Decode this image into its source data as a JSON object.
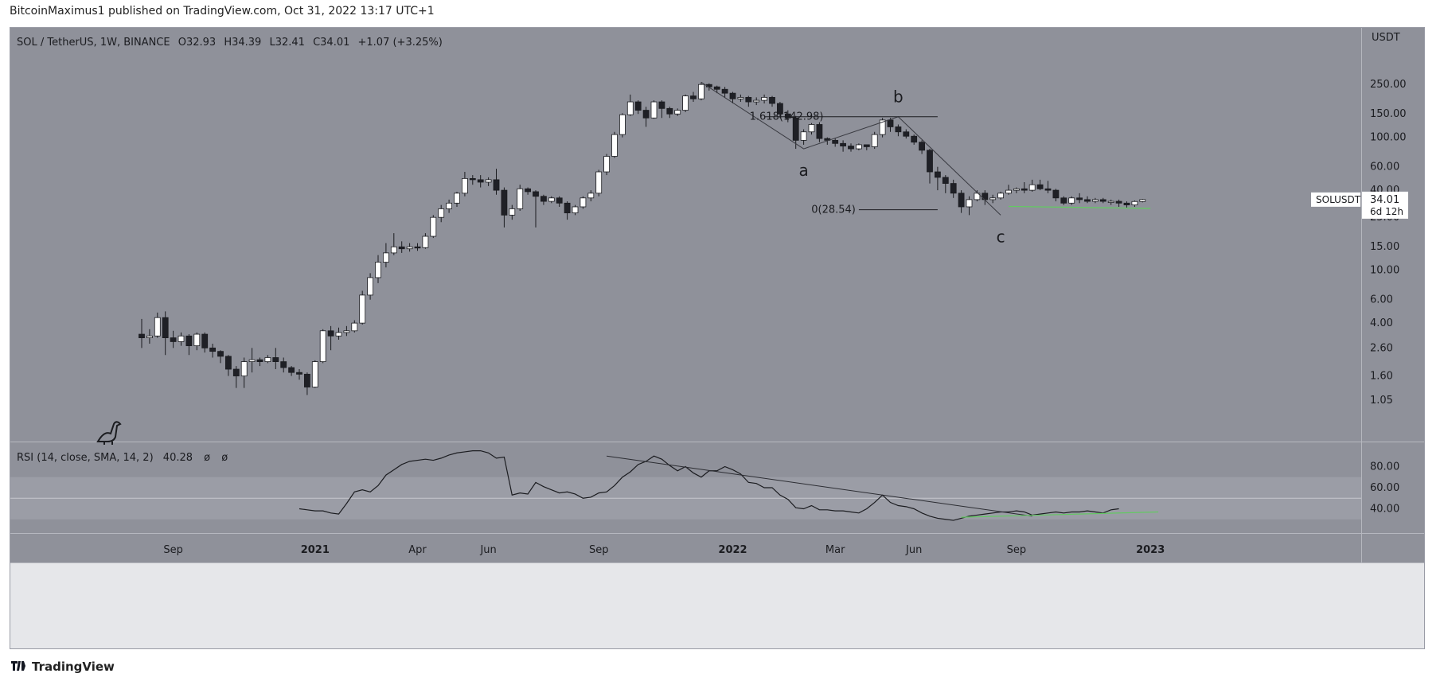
{
  "header": {
    "publisher": "BitcoinMaximus1 published on TradingView.com, Oct 31, 2022 13:17 UTC+1"
  },
  "footer": {
    "brand": "TradingView",
    "logo_icon": "tradingview-logo-icon"
  },
  "colors": {
    "pane_bg": "#8f919a",
    "rsi_band": "#9b9da6",
    "up": "#ffffff",
    "down": "#1f2026",
    "support_line": "#64c864"
  },
  "chart_data": [
    {
      "type": "candlestick",
      "legend": {
        "symbol": "SOL / TetherUS, 1W, BINANCE",
        "o_label": "O",
        "o_value": "32.93",
        "h_label": "H",
        "h_value": "34.39",
        "l_label": "L",
        "l_value": "32.41",
        "c_label": "C",
        "c_value": "34.01",
        "change": "+1.07 (+3.25%)"
      },
      "y_axis": {
        "title": "USDT",
        "scale": "log",
        "ticks": [
          "250.00",
          "150.00",
          "100.00",
          "60.00",
          "40.00",
          "25.00",
          "15.00",
          "10.00",
          "6.00",
          "4.00",
          "2.60",
          "1.60",
          "1.05"
        ]
      },
      "x_axis": {
        "ticks": [
          "Sep",
          "2021",
          "Apr",
          "Jun",
          "Sep",
          "2022",
          "Mar",
          "Jun",
          "Sep",
          "2023"
        ]
      },
      "price_label": {
        "symbol": "SOLUSDT",
        "price": "34.01",
        "countdown": "6d 12h"
      },
      "annotations": {
        "wave_a": "a",
        "wave_b": "b",
        "wave_c": "c",
        "fib_top": "1.618(142.98)",
        "fib_bottom": "0(28.54)"
      },
      "candles": [
        [
          3.3,
          3.1,
          4.3,
          2.6
        ],
        [
          3.1,
          3.2,
          3.6,
          2.8
        ],
        [
          3.2,
          4.4,
          4.8,
          3.1
        ],
        [
          4.4,
          3.1,
          4.9,
          2.3
        ],
        [
          3.1,
          2.9,
          3.5,
          2.6
        ],
        [
          2.9,
          3.2,
          3.4,
          2.7
        ],
        [
          3.2,
          2.7,
          3.3,
          2.3
        ],
        [
          2.7,
          3.3,
          3.4,
          2.5
        ],
        [
          3.3,
          2.6,
          3.4,
          2.4
        ],
        [
          2.6,
          2.45,
          2.8,
          2.2
        ],
        [
          2.45,
          2.25,
          2.5,
          2.0
        ],
        [
          2.25,
          1.8,
          2.3,
          1.6
        ],
        [
          1.8,
          1.6,
          1.9,
          1.3
        ],
        [
          1.6,
          2.05,
          2.2,
          1.3
        ],
        [
          2.05,
          2.12,
          2.6,
          1.7
        ],
        [
          2.12,
          2.05,
          2.2,
          1.9
        ],
        [
          2.05,
          2.2,
          2.3,
          2.0
        ],
        [
          2.2,
          2.05,
          2.6,
          1.8
        ],
        [
          2.05,
          1.85,
          2.2,
          1.7
        ],
        [
          1.85,
          1.7,
          1.9,
          1.6
        ],
        [
          1.7,
          1.65,
          1.8,
          1.5
        ],
        [
          1.65,
          1.32,
          1.7,
          1.15
        ],
        [
          1.32,
          2.05,
          2.1,
          1.3
        ],
        [
          2.05,
          3.5,
          3.6,
          2.0
        ],
        [
          3.5,
          3.2,
          3.8,
          2.5
        ],
        [
          3.2,
          3.4,
          3.7,
          3.0
        ],
        [
          3.4,
          3.5,
          3.8,
          3.2
        ],
        [
          3.5,
          4.0,
          4.2,
          3.4
        ],
        [
          4.0,
          6.5,
          7.0,
          3.9
        ],
        [
          6.5,
          8.8,
          9.5,
          6.0
        ],
        [
          8.8,
          11.5,
          13.0,
          8.0
        ],
        [
          11.5,
          13.5,
          16.0,
          10.5
        ],
        [
          13.5,
          15.0,
          19.0,
          13.0
        ],
        [
          15.0,
          14.5,
          16.5,
          13.5
        ],
        [
          14.5,
          15.0,
          16.0,
          13.8
        ],
        [
          15.0,
          14.8,
          16.0,
          14.0
        ],
        [
          14.8,
          18.0,
          19.0,
          14.5
        ],
        [
          18.0,
          25.0,
          26.0,
          17.5
        ],
        [
          25.0,
          29.0,
          31.0,
          23.0
        ],
        [
          29.0,
          32.0,
          34.0,
          27.0
        ],
        [
          32.0,
          38.0,
          39.0,
          30.0
        ],
        [
          38.0,
          49.0,
          55.0,
          36.0
        ],
        [
          49.0,
          48.0,
          52.0,
          44.0
        ],
        [
          48.0,
          46.0,
          52.0,
          42.0
        ],
        [
          46.0,
          48.0,
          50.0,
          43.0
        ],
        [
          48.0,
          40.0,
          58.0,
          37.0
        ],
        [
          40.0,
          26.0,
          42.0,
          21.0
        ],
        [
          26.0,
          29.0,
          31.0,
          24.0
        ],
        [
          29.0,
          41.0,
          44.0,
          28.0
        ],
        [
          41.0,
          39.0,
          42.0,
          37.0
        ],
        [
          39.0,
          36.0,
          40.0,
          21.0
        ],
        [
          36.0,
          33.0,
          37.0,
          31.0
        ],
        [
          33.0,
          35.0,
          36.0,
          32.0
        ],
        [
          35.0,
          32.0,
          36.0,
          30.0
        ],
        [
          32.0,
          27.0,
          33.0,
          24.0
        ],
        [
          27.0,
          30.0,
          31.0,
          26.0
        ],
        [
          30.0,
          35.0,
          36.0,
          29.0
        ],
        [
          35.0,
          38.0,
          40.0,
          33.0
        ],
        [
          38.0,
          55.0,
          57.0,
          36.0
        ],
        [
          55.0,
          72.0,
          75.0,
          52.0
        ],
        [
          72.0,
          105.0,
          110.0,
          70.0
        ],
        [
          105.0,
          148.0,
          152.0,
          100.0
        ],
        [
          148.0,
          185.0,
          210.0,
          145.0
        ],
        [
          185.0,
          160.0,
          190.0,
          150.0
        ],
        [
          160.0,
          140.0,
          170.0,
          120.0
        ],
        [
          140.0,
          185.0,
          190.0,
          138.0
        ],
        [
          185.0,
          165.0,
          190.0,
          140.0
        ],
        [
          165.0,
          150.0,
          170.0,
          140.0
        ],
        [
          150.0,
          160.0,
          165.0,
          145.0
        ],
        [
          160.0,
          205.0,
          210.0,
          155.0
        ],
        [
          205.0,
          195.0,
          220.0,
          185.0
        ],
        [
          195.0,
          250.0,
          260.0,
          190.0
        ],
        [
          250.0,
          240.0,
          255.0,
          225.0
        ],
        [
          240.0,
          230.0,
          245.0,
          215.0
        ],
        [
          230.0,
          215.0,
          240.0,
          200.0
        ],
        [
          215.0,
          195.0,
          220.0,
          180.0
        ],
        [
          195.0,
          200.0,
          210.0,
          185.0
        ],
        [
          200.0,
          185.0,
          205.0,
          170.0
        ],
        [
          185.0,
          190.0,
          200.0,
          175.0
        ],
        [
          190.0,
          200.0,
          210.0,
          180.0
        ],
        [
          200.0,
          180.0,
          205.0,
          170.0
        ],
        [
          180.0,
          150.0,
          185.0,
          140.0
        ],
        [
          150.0,
          140.0,
          160.0,
          130.0
        ],
        [
          140.0,
          95.0,
          145.0,
          82.0
        ],
        [
          95.0,
          110.0,
          115.0,
          88.0
        ],
        [
          110.0,
          125.0,
          128.0,
          105.0
        ],
        [
          125.0,
          98.0,
          130.0,
          92.0
        ],
        [
          98.0,
          95.0,
          100.0,
          88.0
        ],
        [
          95.0,
          90.0,
          98.0,
          85.0
        ],
        [
          90.0,
          86.0,
          95.0,
          78.0
        ],
        [
          86.0,
          82.0,
          90.0,
          78.0
        ],
        [
          82.0,
          88.0,
          90.0,
          80.0
        ],
        [
          88.0,
          85.0,
          88.0,
          80.0
        ],
        [
          85.0,
          105.0,
          110.0,
          82.0
        ],
        [
          105.0,
          135.0,
          140.0,
          100.0
        ],
        [
          135.0,
          120.0,
          140.0,
          110.0
        ],
        [
          120.0,
          110.0,
          125.0,
          102.0
        ],
        [
          110.0,
          102.0,
          115.0,
          98.0
        ],
        [
          102.0,
          92.0,
          105.0,
          88.0
        ],
        [
          92.0,
          80.0,
          95.0,
          75.0
        ],
        [
          80.0,
          55.0,
          82.0,
          45.0
        ],
        [
          55.0,
          50.0,
          60.0,
          40.0
        ],
        [
          50.0,
          45.0,
          52.0,
          38.0
        ],
        [
          45.0,
          38.0,
          48.0,
          35.0
        ],
        [
          38.0,
          30.0,
          40.0,
          27.0
        ],
        [
          30.0,
          34.0,
          36.0,
          26.0
        ],
        [
          34.0,
          38.0,
          40.0,
          33.0
        ],
        [
          38.0,
          34.0,
          40.0,
          31.0
        ],
        [
          34.0,
          35.0,
          37.0,
          32.0
        ],
        [
          35.0,
          38.0,
          39.0,
          34.0
        ],
        [
          38.0,
          40.0,
          44.0,
          37.0
        ],
        [
          40.0,
          41.0,
          42.0,
          38.0
        ],
        [
          41.0,
          40.0,
          46.0,
          38.0
        ],
        [
          40.0,
          44.0,
          48.0,
          39.0
        ],
        [
          44.0,
          41.0,
          48.0,
          40.0
        ],
        [
          41.0,
          40.0,
          47.0,
          38.0
        ],
        [
          40.0,
          35.0,
          41.0,
          33.0
        ],
        [
          35.0,
          32.0,
          36.0,
          31.0
        ],
        [
          32.0,
          35.0,
          36.0,
          31.0
        ],
        [
          35.0,
          34.0,
          38.0,
          32.0
        ],
        [
          34.0,
          33.0,
          36.0,
          32.0
        ],
        [
          33.0,
          34.0,
          35.0,
          32.0
        ],
        [
          34.0,
          33.0,
          35.0,
          32.0
        ],
        [
          33.0,
          33.0,
          34.0,
          31.0
        ],
        [
          33.0,
          32.0,
          34.0,
          30.0
        ],
        [
          32.0,
          31.0,
          33.0,
          29.5
        ],
        [
          31.0,
          32.9,
          33.5,
          30.0
        ],
        [
          32.9,
          34.01,
          34.39,
          32.41
        ]
      ]
    },
    {
      "type": "line",
      "legend": {
        "label": "RSI (14, close, SMA, 14, 2)",
        "value": "40.28",
        "extra1": "ø",
        "extra2": "ø"
      },
      "y_axis": {
        "ticks": [
          "80.00",
          "60.00",
          "40.00"
        ]
      },
      "bands": {
        "upper": 70,
        "middle": 50,
        "lower": 30
      },
      "series": [
        {
          "start_index": 20,
          "values": [
            40,
            39,
            38,
            38,
            36,
            35,
            45,
            56,
            58,
            56,
            62,
            72,
            77,
            82,
            85,
            86,
            87,
            86,
            88,
            91,
            93,
            94,
            95,
            95,
            93,
            88,
            89,
            53,
            55,
            54,
            65,
            61,
            58,
            55,
            56,
            54,
            50,
            51,
            55,
            56,
            62,
            70,
            75,
            82,
            85,
            90,
            87,
            81,
            76,
            80,
            74,
            70,
            76,
            76,
            80,
            77,
            73,
            65,
            64,
            60,
            60,
            53,
            49,
            41,
            40,
            43,
            39,
            39,
            38,
            38,
            37,
            36,
            40,
            46,
            53,
            46,
            43,
            42,
            40,
            36,
            33,
            31,
            30,
            29,
            31,
            33,
            34,
            35,
            36,
            37,
            37,
            38,
            37,
            34,
            35,
            36,
            37,
            36,
            37,
            37,
            38,
            37,
            36,
            39,
            40
          ]
        }
      ]
    }
  ]
}
